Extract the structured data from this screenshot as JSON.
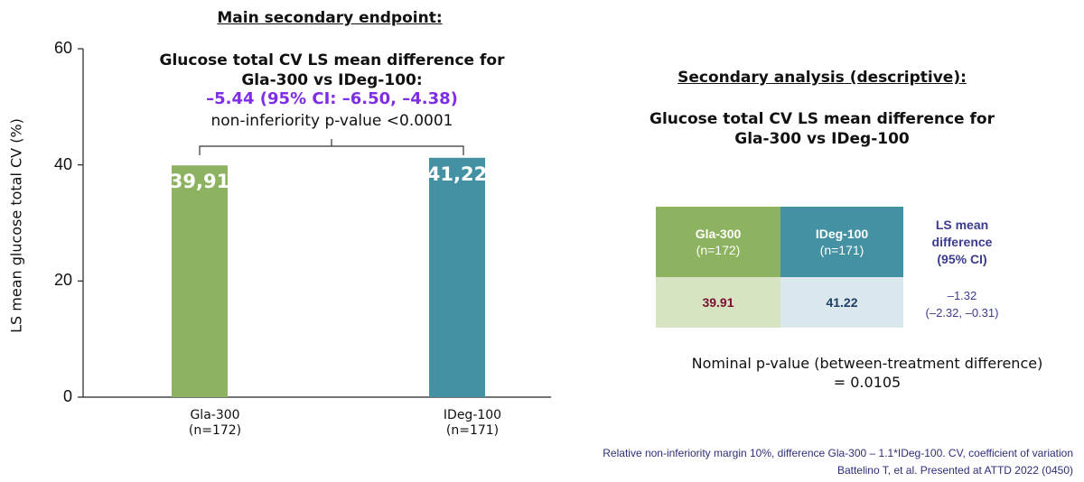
{
  "main_heading": "Main secondary endpoint:",
  "annotation": {
    "title_line1": "Glucose total CV LS mean difference for",
    "title_line2": "Gla-300 vs IDeg-100:",
    "difference": "–5.44 (95% CI: –6.50, –4.38)",
    "pvalue": "non-inferiority p-value <0.0001"
  },
  "colors": {
    "gla": "#8db360",
    "ideg": "#4391a3",
    "gla_light": "#d6e4c2",
    "ideg_light": "#dbe8ee",
    "purple": "#7f2de6",
    "navy": "#3b3b8f",
    "gla_value_text": "#7a1030",
    "ideg_value_text": "#1f3f66"
  },
  "chart_data": {
    "type": "bar",
    "categories": [
      "Gla-300",
      "IDeg-100"
    ],
    "category_sublabels": [
      "(n=172)",
      "(n=171)"
    ],
    "values": [
      39.91,
      41.22
    ],
    "data_labels": [
      "39,91",
      "41,22"
    ],
    "ylabel": "LS mean glucose total CV (%)",
    "ylim": [
      0,
      60
    ],
    "yticks": [
      "0",
      "20",
      "40",
      "60"
    ],
    "grid": false
  },
  "secondary": {
    "heading": "Secondary analysis (descriptive):",
    "title_line1": "Glucose total CV LS mean difference for",
    "title_line2": "Gla-300 vs IDeg-100",
    "table": {
      "gla_header": "Gla-300",
      "gla_n": "(n=172)",
      "ideg_header": "IDeg-100",
      "ideg_n": "(n=171)",
      "gla_value": "39.91",
      "ideg_value": "41.22"
    },
    "ls_header_line1": "LS mean",
    "ls_header_line2": "difference",
    "ls_header_line3": "(95% CI)",
    "ls_value_line1": "–1.32",
    "ls_value_line2": "(–2.32, –0.31)",
    "nominal_line1": "Nominal p-value (between-treatment difference)",
    "nominal_line2": "= 0.0105"
  },
  "footnotes": {
    "line1": "Relative non-inferiority margin 10%, difference Gla-300 – 1.1*IDeg-100. CV, coefficient of variation",
    "line2": "Battelino T, et al. Presented at ATTD 2022 (0450)"
  }
}
